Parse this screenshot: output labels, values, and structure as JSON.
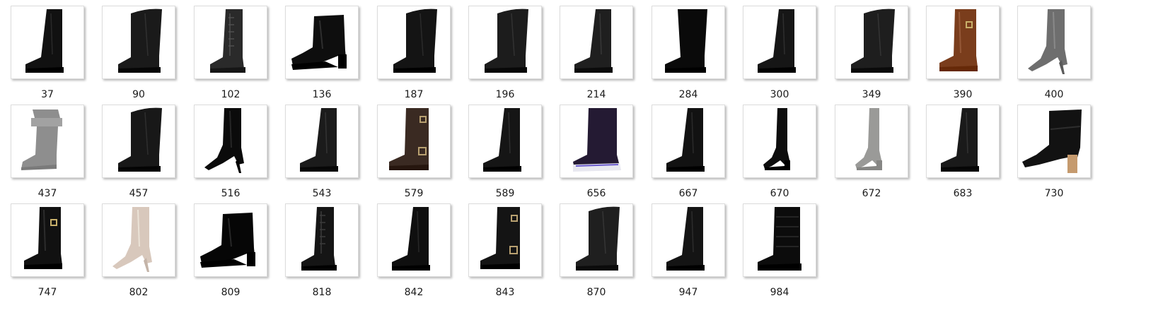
{
  "files": [
    {
      "name": "37",
      "icon": "tall-boot-icon",
      "color": "#111111"
    },
    {
      "name": "90",
      "icon": "wide-calf-boot-icon",
      "color": "#1a1a1a"
    },
    {
      "name": "102",
      "icon": "lace-up-boot-icon",
      "color": "#2a2a2a"
    },
    {
      "name": "136",
      "icon": "heeled-ankle-boot-icon",
      "color": "#0e0e0e"
    },
    {
      "name": "187",
      "icon": "wide-calf-boot-icon",
      "color": "#141414"
    },
    {
      "name": "196",
      "icon": "wide-calf-boot-icon",
      "color": "#1c1c1c"
    },
    {
      "name": "214",
      "icon": "tall-boot-icon",
      "color": "#1f1f1f"
    },
    {
      "name": "284",
      "icon": "suede-boot-icon",
      "color": "#0a0a0a"
    },
    {
      "name": "300",
      "icon": "tall-boot-icon",
      "color": "#161616"
    },
    {
      "name": "349",
      "icon": "wide-calf-boot-icon",
      "color": "#1e1e1e"
    },
    {
      "name": "390",
      "icon": "riding-boot-icon",
      "color": "#7a3d1c"
    },
    {
      "name": "400",
      "icon": "heeled-tall-boot-icon",
      "color": "#6e6e6e"
    },
    {
      "name": "437",
      "icon": "slouch-boot-icon",
      "color": "#8e8e8e"
    },
    {
      "name": "457",
      "icon": "wide-calf-boot-icon",
      "color": "#181818"
    },
    {
      "name": "516",
      "icon": "heeled-tall-boot-icon",
      "color": "#0b0b0b"
    },
    {
      "name": "543",
      "icon": "tall-boot-icon",
      "color": "#1b1b1b"
    },
    {
      "name": "579",
      "icon": "buckle-boot-icon",
      "color": "#3a2a22"
    },
    {
      "name": "589",
      "icon": "tall-boot-icon",
      "color": "#151515"
    },
    {
      "name": "656",
      "icon": "sneaker-boot-icon",
      "color": "#241a33"
    },
    {
      "name": "667",
      "icon": "tall-boot-icon",
      "color": "#121212"
    },
    {
      "name": "670",
      "icon": "over-knee-boot-icon",
      "color": "#0d0d0d"
    },
    {
      "name": "672",
      "icon": "over-knee-boot-icon",
      "color": "#9a9a98"
    },
    {
      "name": "683",
      "icon": "tall-boot-icon",
      "color": "#1a1a1a"
    },
    {
      "name": "730",
      "icon": "block-heel-bootie-icon",
      "color": "#121212"
    },
    {
      "name": "747",
      "icon": "riding-boot-icon",
      "color": "#111111"
    },
    {
      "name": "802",
      "icon": "heeled-tall-boot-icon",
      "color": "#d8c8bc"
    },
    {
      "name": "809",
      "icon": "patent-ankle-boot-icon",
      "color": "#060606"
    },
    {
      "name": "818",
      "icon": "lace-up-boot-icon",
      "color": "#151515"
    },
    {
      "name": "842",
      "icon": "tall-boot-icon",
      "color": "#0f0f0f"
    },
    {
      "name": "843",
      "icon": "buckle-boot-icon",
      "color": "#141414"
    },
    {
      "name": "870",
      "icon": "wide-calf-boot-icon",
      "color": "#1f1f1f"
    },
    {
      "name": "947",
      "icon": "tall-boot-icon",
      "color": "#141414"
    },
    {
      "name": "984",
      "icon": "quilted-boot-icon",
      "color": "#0c0c0c"
    }
  ]
}
